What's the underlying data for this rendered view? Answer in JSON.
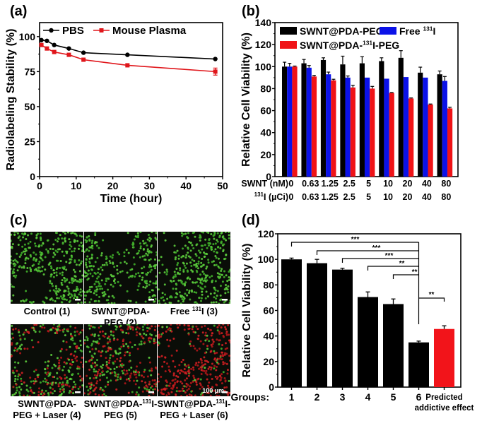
{
  "chart_data": [
    {
      "panel": "(a)",
      "type": "line",
      "xlabel": "Time (hour)",
      "ylabel": "Radiolabeling Stability (%)",
      "xlim": [
        0,
        50
      ],
      "ylim": [
        0,
        110
      ],
      "xticks": [
        "0",
        "10",
        "20",
        "30",
        "40",
        "50"
      ],
      "yticks": [
        "0",
        "25",
        "50",
        "75",
        "100"
      ],
      "legend_position": "top",
      "series": [
        {
          "name": "PBS",
          "color": "#000000",
          "x": [
            0.5,
            2,
            4,
            8,
            12,
            24,
            48
          ],
          "y": [
            97.5,
            97,
            94,
            91.5,
            88.5,
            87,
            84
          ]
        },
        {
          "name": "Mouse Plasma",
          "color": "#e0161b",
          "x": [
            0.5,
            2,
            4,
            8,
            12,
            24,
            48
          ],
          "y": [
            94,
            91.5,
            89,
            87,
            83.5,
            79.5,
            75
          ],
          "err_last": 2.5
        }
      ]
    },
    {
      "panel": "(b)",
      "type": "bar",
      "ylabel": "Relative Cell Viability (%)",
      "ylim": [
        0,
        140
      ],
      "yticks": [
        "0",
        "20",
        "40",
        "60",
        "80",
        "100",
        "120",
        "140"
      ],
      "row1_label": "SWNT (nM)",
      "row2_label_sup": "131",
      "row2_label": "I (µCi)",
      "categories_row1": [
        "0",
        "0.63",
        "1.25",
        "2.5",
        "5",
        "10",
        "20",
        "40",
        "80"
      ],
      "categories_row2": [
        "0",
        "0.63",
        "1.25",
        "2.5",
        "5",
        "10",
        "20",
        "40",
        "80"
      ],
      "legend_position": "top-left",
      "series": [
        {
          "name": "SWNT@PDA-PEG",
          "color": "#000000",
          "values": [
            100,
            103,
            106,
            102,
            103,
            105,
            108,
            94.5,
            93
          ],
          "err": [
            4,
            3.5,
            2,
            7.5,
            6,
            3,
            6.5,
            5,
            3
          ]
        },
        {
          "name_pre": "Free ",
          "name_sup": "131",
          "name_post": "I",
          "name": "Free 131I",
          "color": "#0b12e8",
          "values": [
            100,
            99,
            93,
            90,
            90,
            89,
            90.5,
            90,
            87
          ],
          "err": [
            3,
            2,
            2,
            1.5,
            0,
            0,
            0,
            0,
            4
          ]
        },
        {
          "name_pre": "SWNT@PDA-",
          "name_sup": "131",
          "name_post": "I-PEG",
          "name": "SWNT@PDA-131I-PEG",
          "color": "#f01317",
          "values": [
            100,
            91,
            87.5,
            81,
            80,
            76,
            71,
            65.5,
            62
          ],
          "err": [
            0.5,
            1,
            1,
            2,
            2,
            0.5,
            0.5,
            0.5,
            1
          ]
        }
      ]
    },
    {
      "panel": "(c)",
      "type": "table",
      "scale_bar": "100 µm",
      "images": [
        {
          "label_lines": [
            "Control (1)"
          ],
          "red_fraction": 0.0
        },
        {
          "label_lines": [
            "SWNT@PDA-",
            "PEG (2)"
          ],
          "red_fraction": 0.0
        },
        {
          "label_pre": "Free ",
          "label_sup": "131",
          "label_post": "I (3)",
          "label_lines": [
            "Free 131I (3)"
          ],
          "red_fraction": 0.0
        },
        {
          "label_lines": [
            "SWNT@PDA-",
            "PEG + Laser (4)"
          ],
          "red_fraction": 0.4
        },
        {
          "label_line1_pre": "SWNT@PDA-",
          "label_line1_sup": "131",
          "label_line1_post": "I-",
          "label_lines": [
            "SWNT@PDA-131I-",
            "PEG (5)"
          ],
          "red_fraction": 0.5
        },
        {
          "label_line1_pre": "SWNT@PDA-",
          "label_line1_sup": "131",
          "label_line1_post": "I-",
          "label_lines": [
            "SWNT@PDA-131I-",
            "PEG + Laser (6)"
          ],
          "red_fraction": 0.9
        }
      ]
    },
    {
      "panel": "(d)",
      "type": "bar",
      "ylabel": "Relative Cell Viability (%)",
      "ylim": [
        0,
        120
      ],
      "yticks": [
        "0",
        "20",
        "40",
        "60",
        "80",
        "100",
        "120"
      ],
      "xlabel_prefix": "Groups:",
      "categories": [
        "1",
        "2",
        "3",
        "4",
        "5",
        "6",
        "Predicted addictive effect"
      ],
      "category_lines_last": [
        "Predicted",
        "addictive effect"
      ],
      "values": [
        100,
        97,
        92,
        70.5,
        65,
        35,
        45.5
      ],
      "err": [
        1,
        3,
        1,
        4,
        4,
        1,
        2.5
      ],
      "colors": [
        "#000000",
        "#000000",
        "#000000",
        "#000000",
        "#000000",
        "#000000",
        "#f2141a"
      ],
      "significance": [
        {
          "from": 1,
          "to": 6,
          "label": "***"
        },
        {
          "from": 2,
          "to": 6,
          "label": "***"
        },
        {
          "from": 3,
          "to": 6,
          "label": "***"
        },
        {
          "from": 4,
          "to": 6,
          "label": "**"
        },
        {
          "from": 5,
          "to": 6,
          "label": "**"
        },
        {
          "from": 6,
          "to": 7,
          "label": "**"
        }
      ]
    }
  ]
}
